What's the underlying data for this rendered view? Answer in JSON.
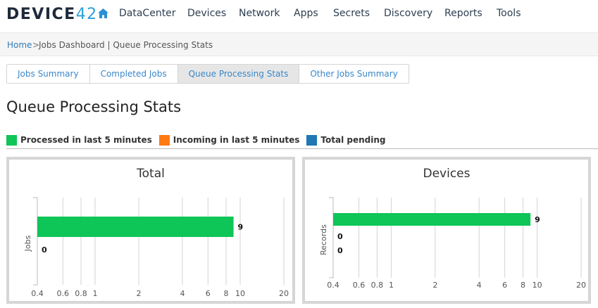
{
  "brand": {
    "logo_text": "DEVICE",
    "logo_num": "42"
  },
  "nav": {
    "home_icon": "home-icon",
    "items": [
      "DataCenter",
      "Devices",
      "Network",
      "Apps",
      "Secrets",
      "Discovery",
      "Reports",
      "Tools"
    ]
  },
  "breadcrumb": {
    "home": "Home",
    "sep": ">",
    "rest": "Jobs Dashboard | Queue Processing Stats"
  },
  "tabs": [
    {
      "label": "Jobs Summary",
      "active": false
    },
    {
      "label": "Completed Jobs",
      "active": false
    },
    {
      "label": "Queue Processing Stats",
      "active": true
    },
    {
      "label": "Other Jobs Summary",
      "active": false
    }
  ],
  "page_title": "Queue Processing Stats",
  "legend": [
    {
      "label": "Processed in last 5 minutes",
      "color": "#0ec558"
    },
    {
      "label": "Incoming in last 5 minutes",
      "color": "#ff7a10"
    },
    {
      "label": "Total pending",
      "color": "#1f77b4"
    }
  ],
  "chart_data": [
    {
      "type": "bar",
      "orientation": "horizontal",
      "title": "Total",
      "ylabel": "Jobs",
      "xscale": "log",
      "xlim": [
        0.4,
        20
      ],
      "xticks": [
        "0.4",
        "0.6",
        "0.8",
        "1",
        "2",
        "4",
        "6",
        "8",
        "10",
        "20"
      ],
      "xtick_values": [
        0.4,
        0.6,
        0.8,
        1,
        2,
        4,
        6,
        8,
        10,
        20
      ],
      "series": [
        {
          "name": "Processed in last 5 minutes",
          "color": "#0ec558",
          "values": [
            9
          ]
        },
        {
          "name": "Total pending",
          "color": "#1f77b4",
          "values": [
            0
          ]
        }
      ],
      "value_labels": [
        "9",
        "0"
      ]
    },
    {
      "type": "bar",
      "orientation": "horizontal",
      "title": "Devices",
      "ylabel": "Records",
      "xscale": "log",
      "xlim": [
        0.4,
        20
      ],
      "xticks": [
        "0.4",
        "0.6",
        "0.8",
        "1",
        "2",
        "4",
        "6",
        "8",
        "10",
        "20"
      ],
      "xtick_values": [
        0.4,
        0.6,
        0.8,
        1,
        2,
        4,
        6,
        8,
        10,
        20
      ],
      "series": [
        {
          "name": "Processed in last 5 minutes",
          "color": "#0ec558",
          "values": [
            9
          ]
        },
        {
          "name": "Incoming in last 5 minutes",
          "color": "#ff7a10",
          "values": [
            0
          ]
        },
        {
          "name": "Total pending",
          "color": "#1f77b4",
          "values": [
            0
          ]
        }
      ],
      "value_labels": [
        "9",
        "0",
        "0"
      ]
    }
  ]
}
